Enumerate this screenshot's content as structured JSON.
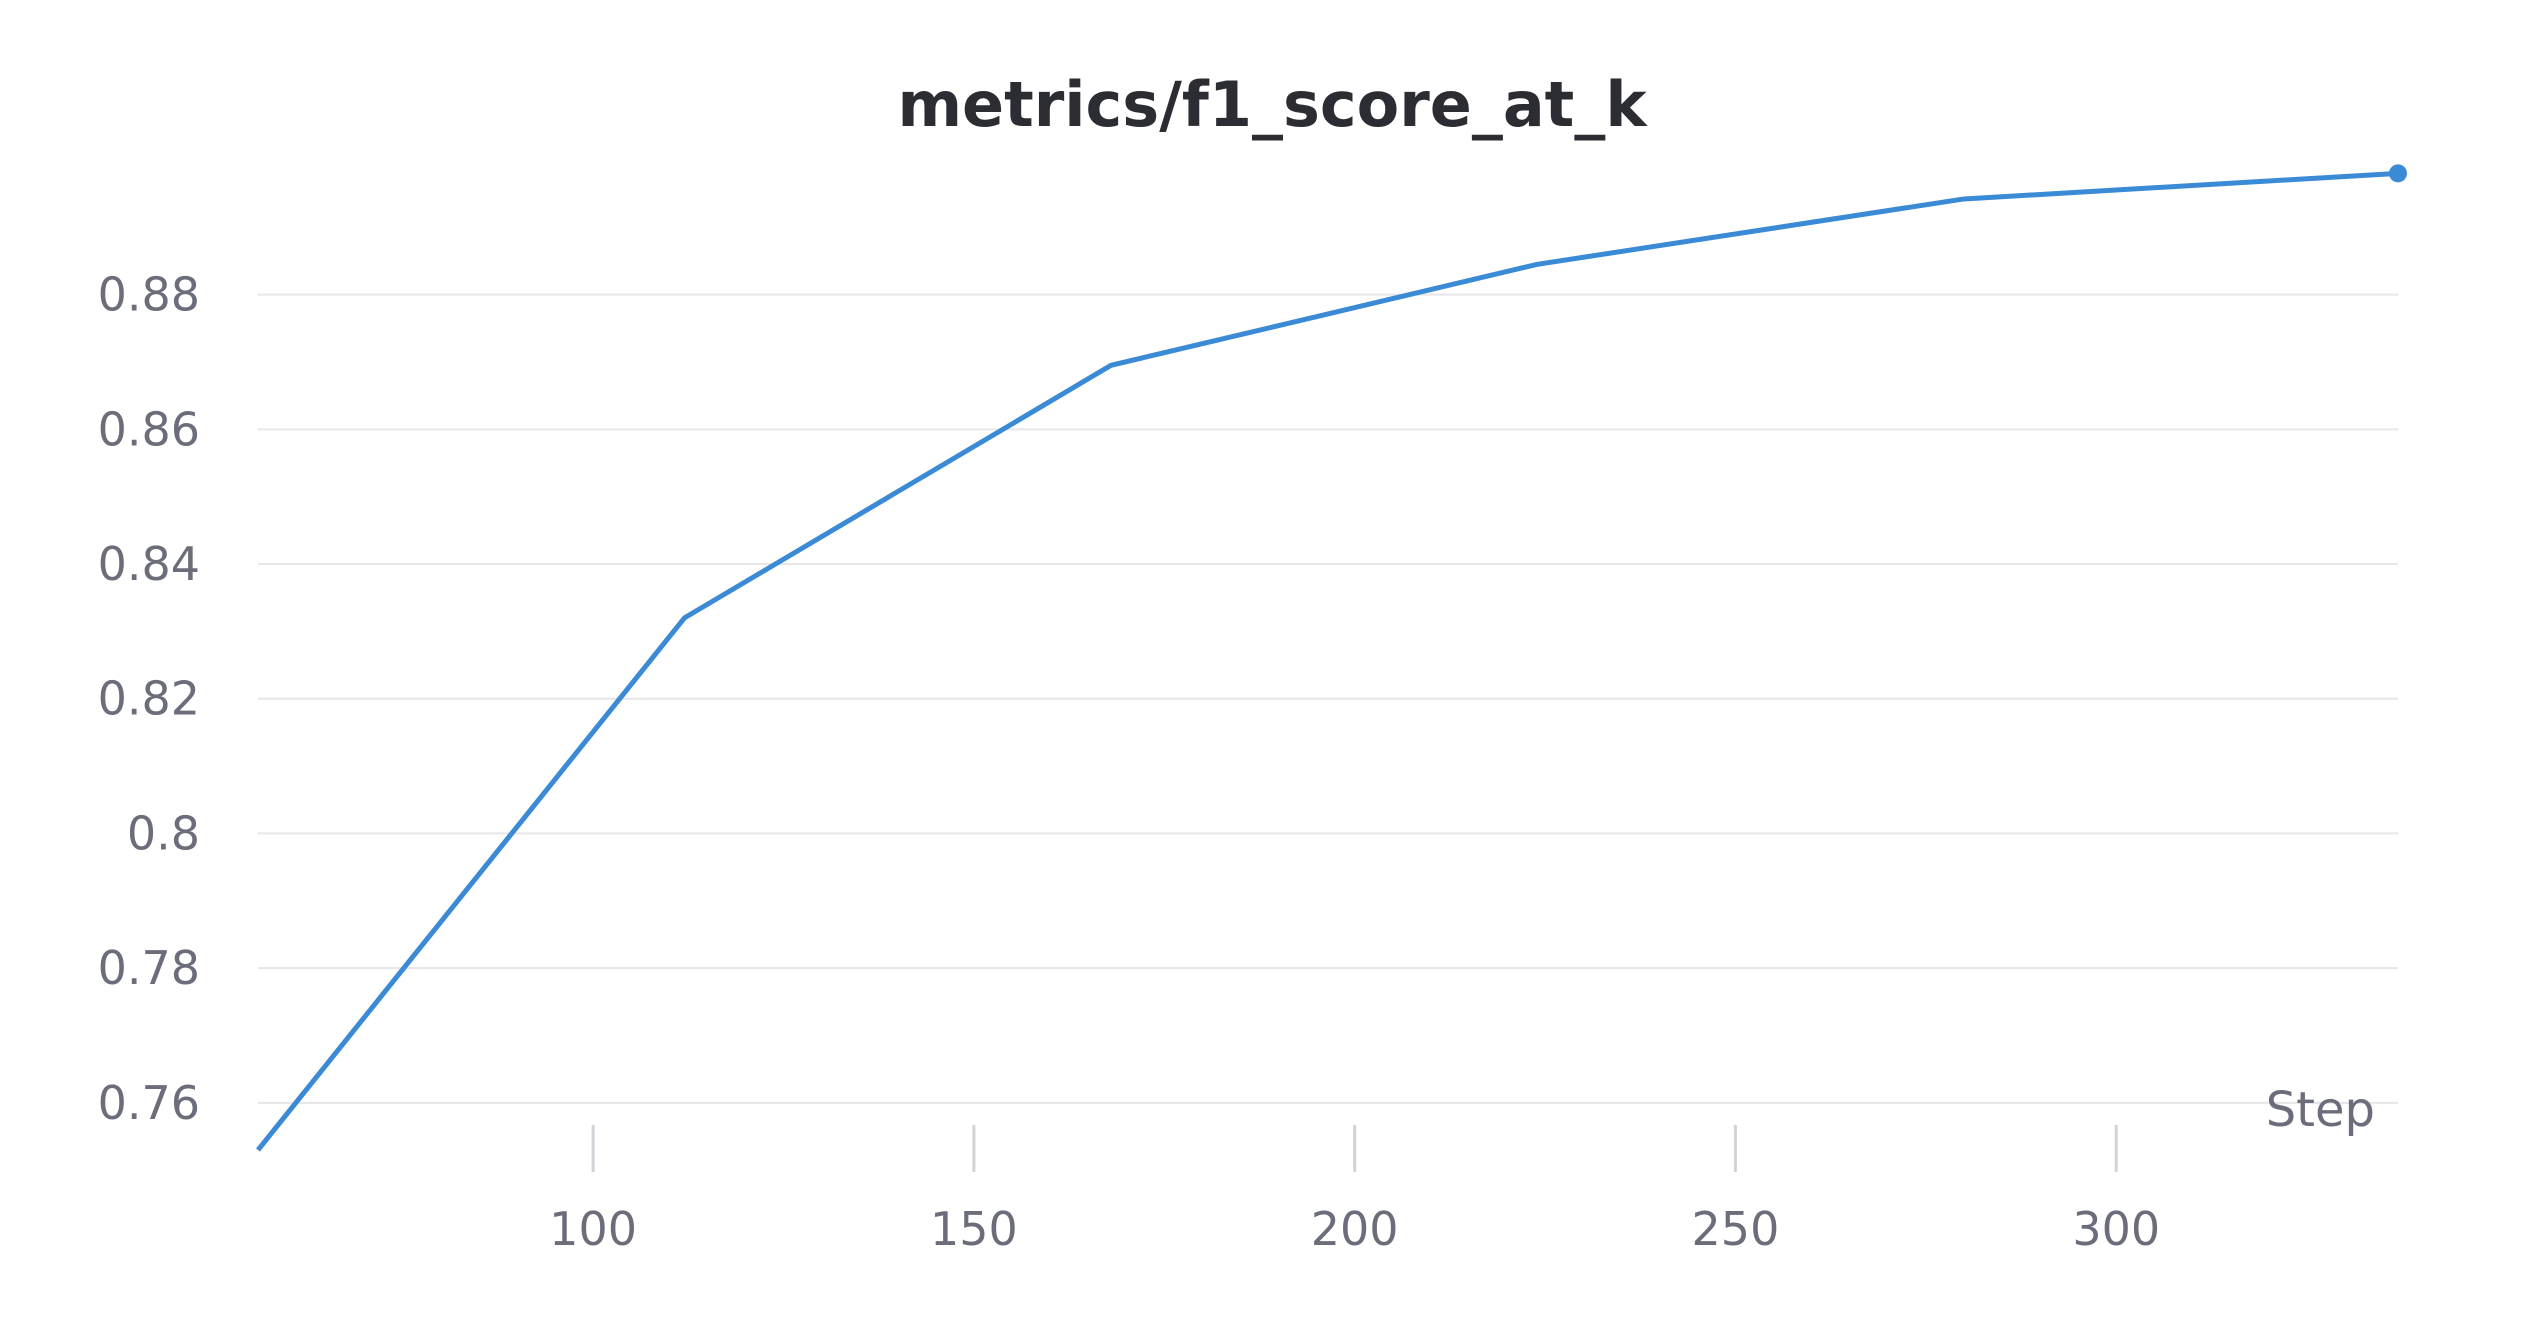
{
  "chart_data": {
    "type": "line",
    "title": "metrics/f1_score_at_k",
    "xlabel": "Step",
    "ylabel": "",
    "xlim": [
      56,
      337
    ],
    "ylim": [
      0.753,
      0.8985
    ],
    "x_ticks": [
      100,
      150,
      200,
      250,
      300
    ],
    "x_tick_labels": [
      "100",
      "150",
      "200",
      "250",
      "300"
    ],
    "y_ticks": [
      0.76,
      0.78,
      0.8,
      0.82,
      0.84,
      0.86,
      0.88
    ],
    "y_tick_labels": [
      "0.76",
      "0.78",
      "0.8",
      "0.82",
      "0.84",
      "0.86",
      "0.88"
    ],
    "grid": true,
    "line_color": "#3a8ad6",
    "series": [
      {
        "x": [
          56,
          112,
          168,
          224,
          280,
          337
        ],
        "y": [
          0.753,
          0.832,
          0.8695,
          0.8845,
          0.8942,
          0.898
        ]
      }
    ]
  }
}
